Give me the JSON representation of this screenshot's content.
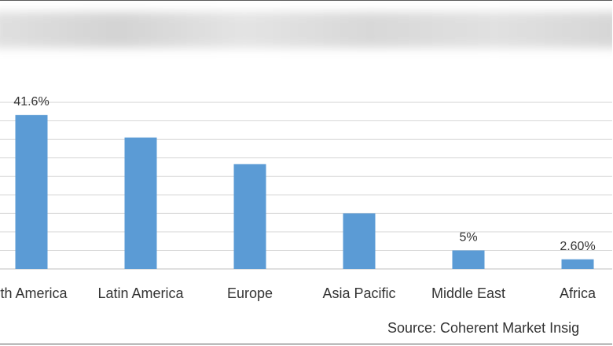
{
  "chart_data": {
    "type": "bar",
    "title": "",
    "xlabel": "",
    "ylabel": "",
    "categories": [
      "rth America",
      "Latin America",
      "Europe",
      "Asia Pacific",
      "Middle East",
      "Africa"
    ],
    "values": [
      41.6,
      35.5,
      28.3,
      15.0,
      5.0,
      2.6
    ],
    "data_labels": [
      "41.6%",
      "",
      "",
      "",
      "5%",
      "2.60%"
    ],
    "ylim": [
      0,
      48
    ],
    "grid": true,
    "bar_color": "#5b9bd5"
  },
  "footer": {
    "source": "Source: Coherent Market Insig"
  }
}
